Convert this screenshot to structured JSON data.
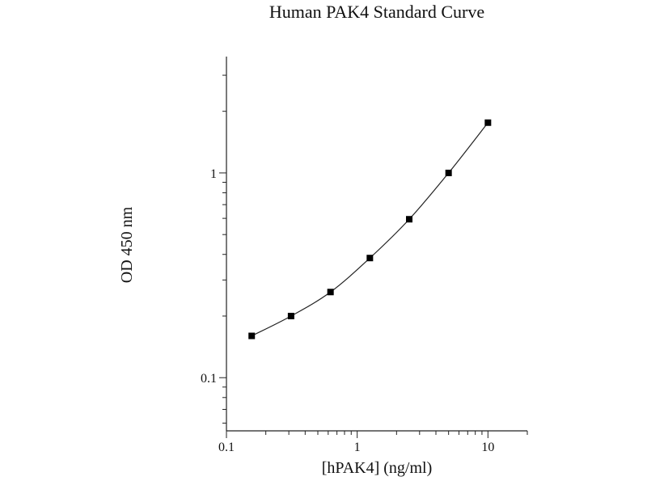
{
  "chart_data": {
    "type": "line",
    "title": "Human PAK4 Standard Curve",
    "xlabel": "[hPAK4] (ng/ml)",
    "ylabel": "OD 450 nm",
    "x_scale": "log",
    "y_scale": "log",
    "xlim": [
      0.1,
      20
    ],
    "ylim": [
      0.055,
      3.7
    ],
    "x_ticks": [
      {
        "value": 0.1,
        "label": "0.1"
      },
      {
        "value": 1,
        "label": "1"
      },
      {
        "value": 10,
        "label": "10"
      }
    ],
    "y_ticks": [
      {
        "value": 0.1,
        "label": "0.1"
      },
      {
        "value": 1,
        "label": "1"
      }
    ],
    "grid": false,
    "series": [
      {
        "x": [
          0.156,
          0.312,
          0.625,
          1.25,
          2.5,
          5,
          10
        ],
        "y": [
          0.16,
          0.2,
          0.262,
          0.384,
          0.594,
          1.0,
          1.76
        ],
        "color": "#000000",
        "marker": "square"
      }
    ]
  }
}
